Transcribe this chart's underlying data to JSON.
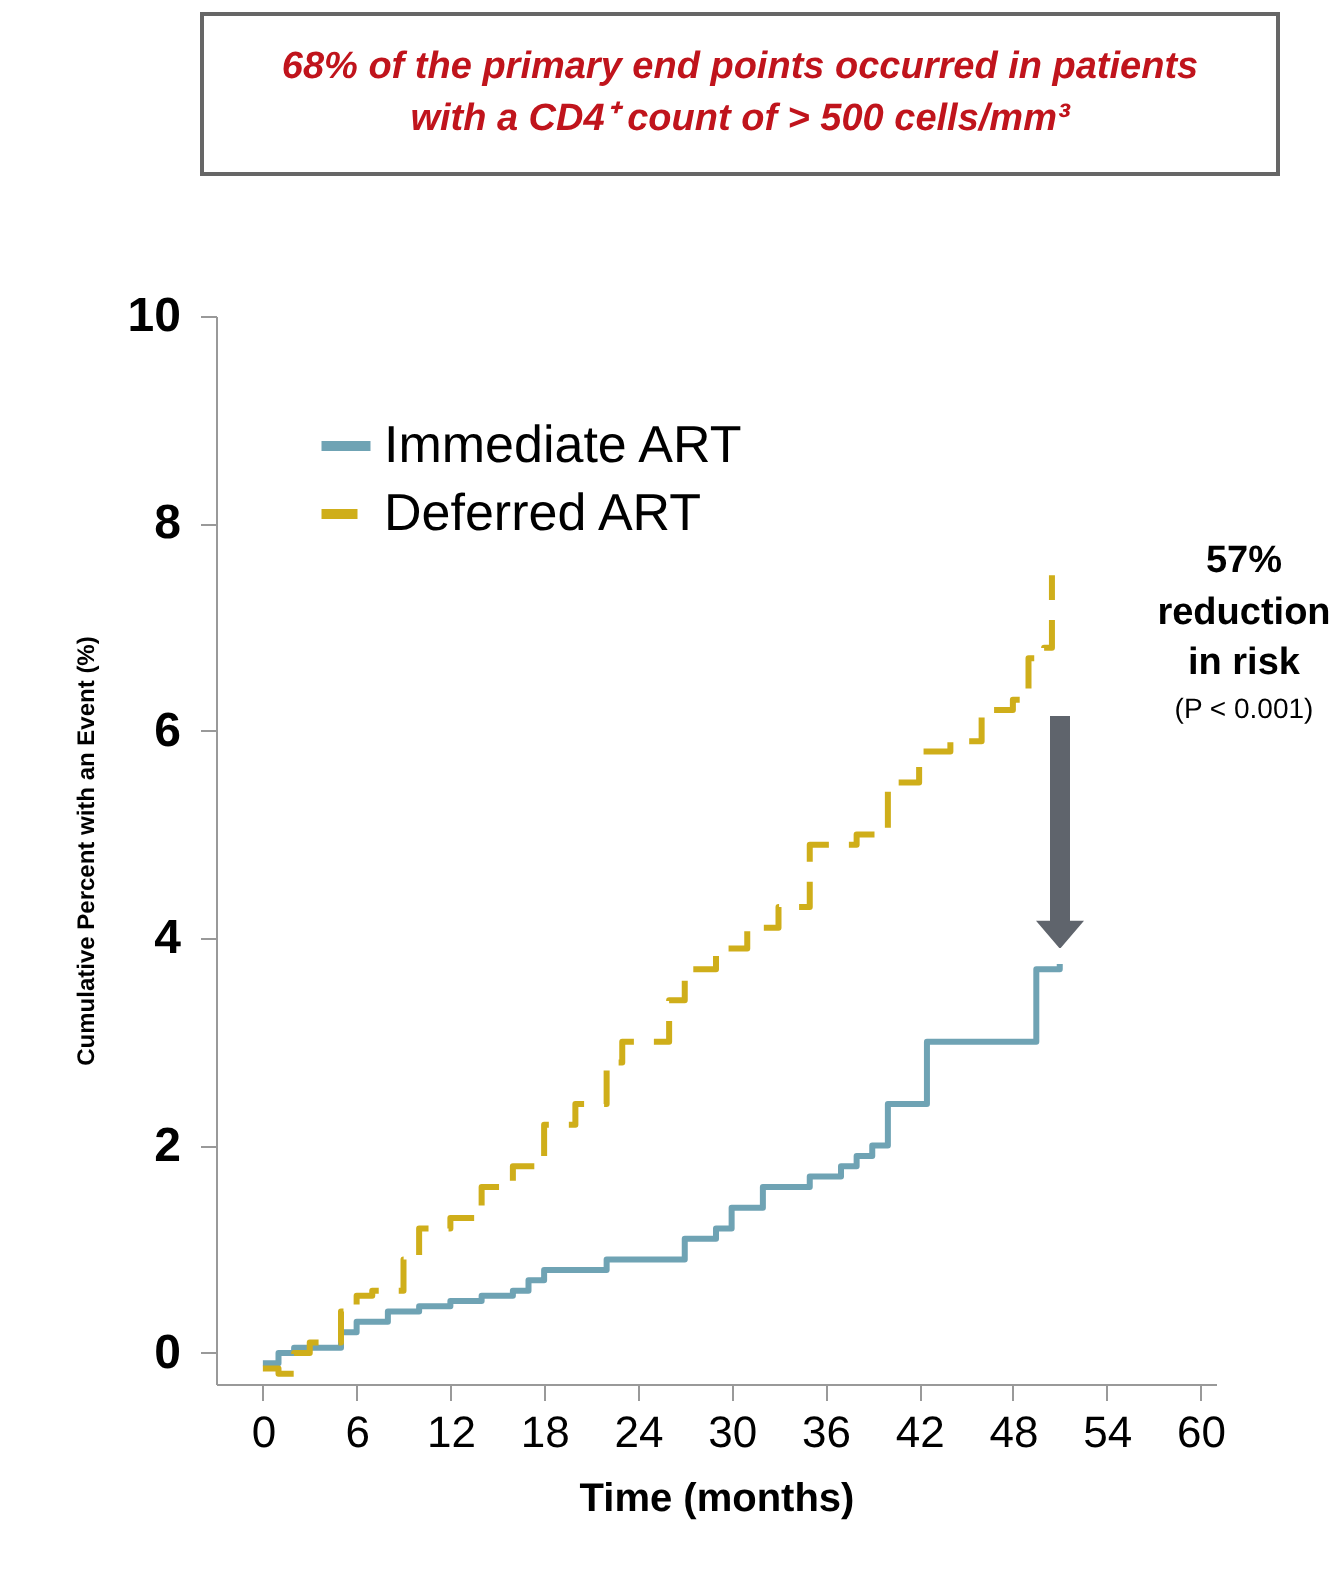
{
  "chart_data": {
    "type": "step",
    "title": "68% of the primary end points occurred in patients with a CD4⁺ count of > 500 cells/mm³",
    "xlabel": "Time (months)",
    "ylabel": "Cumulative Percent with an Event (%)",
    "xlim": [
      -3,
      61
    ],
    "xticks": [
      0,
      6,
      12,
      18,
      24,
      30,
      36,
      42,
      48,
      54,
      60
    ],
    "ylim": [
      -0.3,
      10
    ],
    "yticks": [
      0,
      2,
      4,
      6,
      8,
      10
    ],
    "grid": false,
    "legend": "top left",
    "annotations": [
      "57% reduction in risk",
      "(P < 0.001)"
    ],
    "series": [
      {
        "name": "Immediate ART",
        "color": "#6fa3b4",
        "line_style": "solid",
        "x": [
          0,
          1,
          2,
          4,
          5,
          6,
          8,
          10,
          12,
          14,
          16,
          17,
          18,
          21,
          22,
          26,
          27,
          29,
          30,
          31,
          32,
          34,
          35,
          37,
          38,
          39,
          40,
          42,
          42.5,
          49,
          49.5,
          51
        ],
        "values": [
          -0.1,
          0,
          0.05,
          0.05,
          0.2,
          0.3,
          0.4,
          0.45,
          0.5,
          0.55,
          0.6,
          0.7,
          0.8,
          0.8,
          0.9,
          0.9,
          1.1,
          1.2,
          1.4,
          1.4,
          1.6,
          1.6,
          1.7,
          1.8,
          1.9,
          2.0,
          2.4,
          2.4,
          3.0,
          3.0,
          3.7,
          3.75
        ]
      },
      {
        "name": "Deferred ART",
        "color": "#cfae1a",
        "line_style": "dashed",
        "x": [
          0,
          1,
          2,
          3,
          5,
          6,
          7,
          9,
          10,
          12,
          14,
          16,
          18,
          20,
          22,
          23,
          24,
          26,
          27,
          29,
          31,
          33,
          35,
          38,
          40,
          42,
          44,
          46,
          48,
          49,
          50,
          50.5
        ],
        "values": [
          -0.15,
          -0.2,
          0,
          0.1,
          0.4,
          0.55,
          0.6,
          0.9,
          1.2,
          1.3,
          1.6,
          1.8,
          2.2,
          2.4,
          2.8,
          3.0,
          3.0,
          3.4,
          3.7,
          3.9,
          4.1,
          4.3,
          4.9,
          5.0,
          5.5,
          5.8,
          5.9,
          6.2,
          6.3,
          6.7,
          6.8,
          7.5
        ]
      }
    ]
  }
}
